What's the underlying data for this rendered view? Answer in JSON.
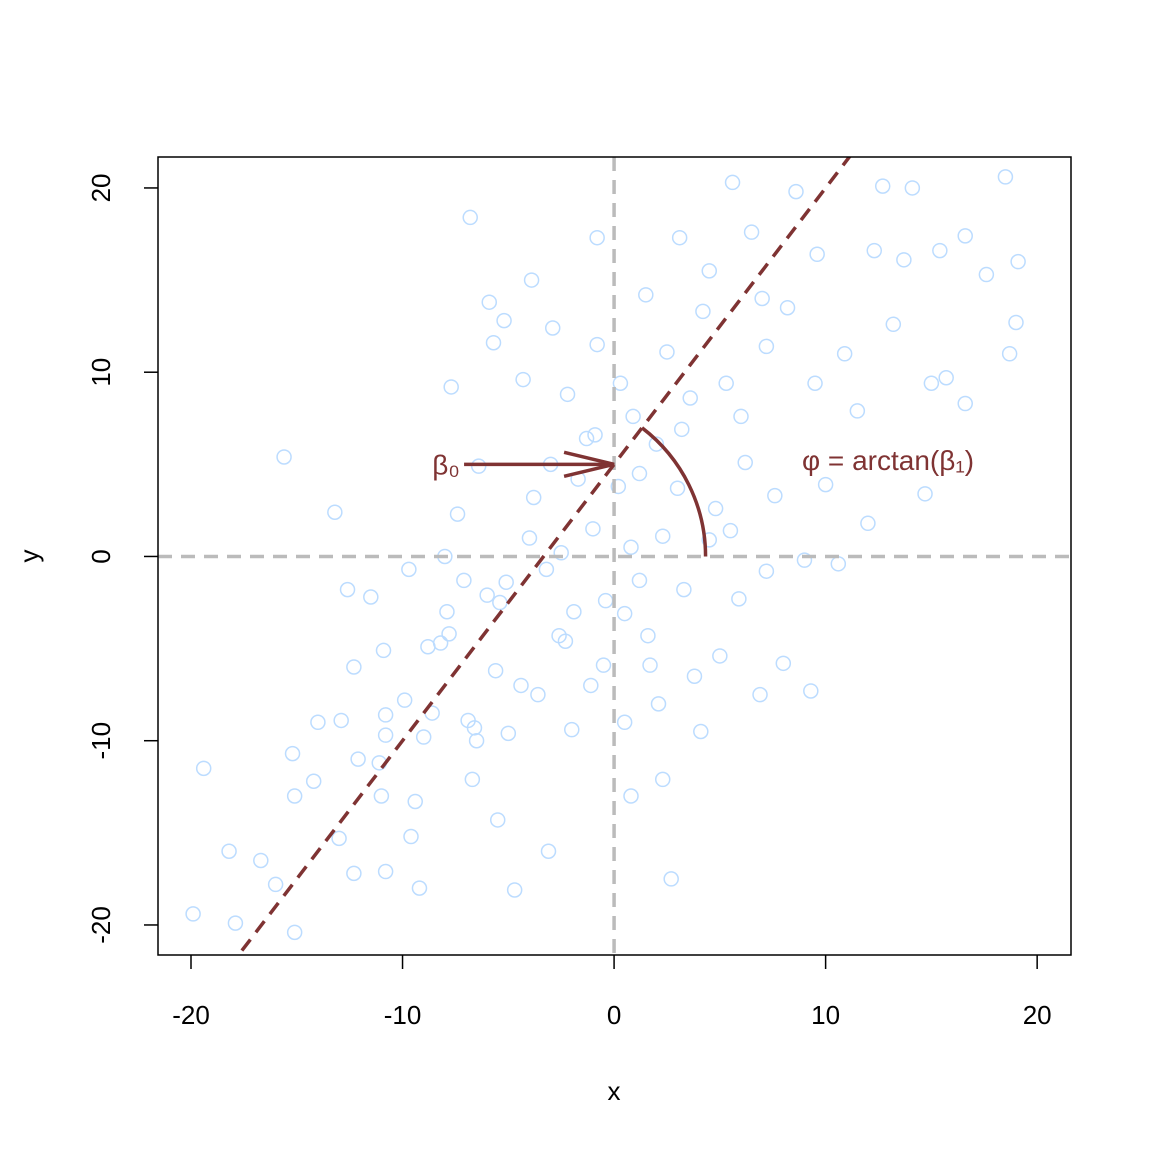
{
  "chart_data": {
    "type": "scatter",
    "x_label": "x",
    "y_label": "y",
    "xlim": [
      -21.56,
      21.6
    ],
    "ylim": [
      -21.63,
      21.68
    ],
    "xticks": [
      -20,
      -10,
      0,
      10,
      20
    ],
    "yticks": [
      -20,
      -10,
      0,
      10,
      20
    ],
    "point_color": "#bcdcff",
    "x": [
      -19.4,
      -19.9,
      -18.2,
      -17.9,
      -16.7,
      -16,
      -15.6,
      -15.2,
      -15.1,
      -15.1,
      -14.2,
      -13.2,
      -13,
      -12.9,
      -12.6,
      -12.3,
      -12.3,
      -12.1,
      -11.5,
      -11.1,
      -10.9,
      -10.8,
      -10.8,
      -10.8,
      -9.9,
      -9.7,
      -9.6,
      -9.4,
      -9.2,
      -9,
      -8.8,
      -8.6,
      -8.2,
      -7.8,
      -7.9,
      -7.7,
      -7.4,
      -7.1,
      -6.9,
      -6.8,
      -6.7,
      -6.6,
      -6.4,
      -6,
      -5.9,
      -5.7,
      -5.6,
      -5.5,
      -5.4,
      -5.2,
      -5.1,
      -5,
      -4.7,
      -4.4,
      -4.3,
      -3.9,
      -3.8,
      -3.6,
      -3.2,
      -3.1,
      -2.9,
      -2.6,
      -2.3,
      -2.2,
      -2,
      -1.9,
      -1.7,
      -1.3,
      -1.1,
      -0.8,
      -0.8,
      -0.5,
      -0.4,
      0.2,
      0.3,
      0.5,
      0.5,
      0.8,
      0.9,
      1.2,
      1.5,
      1.7,
      2,
      2.1,
      2.3,
      2.5,
      2.7,
      3,
      3.1,
      3.3,
      3.6,
      3.8,
      4.1,
      4.2,
      4.5,
      4.8,
      5,
      5.3,
      5.6,
      5.9,
      6.2,
      6.5,
      6.9,
      7.2,
      7.2,
      7.6,
      8,
      8.2,
      8.6,
      9,
      9.3,
      9.6,
      10,
      10.6,
      10.9,
      11.5,
      12,
      12.3,
      12.7,
      13.2,
      13.7,
      14.1,
      14.7,
      15,
      15.4,
      15.7,
      16.6,
      16.6,
      17.6,
      18.5,
      18.7,
      19,
      19.1,
      -1,
      0.8,
      1.2,
      -0.9,
      2.3,
      3.2,
      -2.5,
      4.5,
      6,
      5.5,
      -4,
      -3,
      1.6,
      7,
      9.5,
      -8,
      -6.5,
      -11,
      -14
    ],
    "values": [
      -11.5,
      -19.4,
      -16,
      -19.9,
      -16.5,
      -17.8,
      5.4,
      -10.7,
      -13,
      -20.4,
      -12.2,
      2.4,
      -15.3,
      -8.9,
      -1.8,
      -6,
      -17.2,
      -11,
      -2.2,
      -11.2,
      -5.1,
      -17.1,
      -8.6,
      -9.7,
      -7.8,
      -0.7,
      -15.2,
      -13.3,
      -18,
      -9.8,
      -4.9,
      -8.5,
      -4.7,
      -4.2,
      -3,
      9.2,
      2.3,
      -1.3,
      -8.9,
      18.4,
      -12.1,
      -9.3,
      4.9,
      -2.1,
      13.8,
      11.6,
      -6.2,
      -14.3,
      -2.5,
      12.8,
      -1.4,
      -9.6,
      -18.1,
      -7,
      9.6,
      15,
      3.2,
      -7.5,
      -0.7,
      -16,
      12.4,
      -4.3,
      -4.6,
      8.8,
      -9.4,
      -3,
      4.2,
      6.4,
      -7,
      17.3,
      11.5,
      -5.9,
      -2.4,
      3.8,
      9.4,
      -3.1,
      -9,
      -13,
      7.6,
      -1.3,
      14.2,
      -5.9,
      6.1,
      -8,
      -12.1,
      11.1,
      -17.5,
      3.7,
      17.3,
      -1.8,
      8.6,
      -6.5,
      -9.5,
      13.3,
      15.5,
      2.6,
      -5.4,
      9.4,
      20.3,
      -2.3,
      5.1,
      17.6,
      -7.5,
      -0.8,
      11.4,
      3.3,
      -5.8,
      13.5,
      19.8,
      -0.2,
      -7.3,
      16.4,
      3.9,
      -0.4,
      11,
      7.9,
      1.8,
      16.6,
      20.1,
      12.6,
      16.1,
      20,
      3.4,
      9.4,
      16.6,
      9.7,
      8.3,
      17.4,
      15.3,
      20.6,
      11,
      12.7,
      16,
      1.5,
      0.5,
      4.5,
      6.6,
      1.1,
      6.9,
      0.2,
      0.9,
      7.6,
      1.4,
      1,
      5,
      -4.3,
      14,
      9.4,
      0,
      -10,
      -13,
      -9
    ],
    "reference_line": {
      "intercept": 5,
      "slope": 1.5,
      "color": "#7f3333"
    },
    "vline": 0,
    "hline": 0,
    "reference_color": "#bbbbbb",
    "annotations": {
      "intercept_label": "β₀",
      "angle_label": "φ = arctan(β₁)"
    }
  }
}
